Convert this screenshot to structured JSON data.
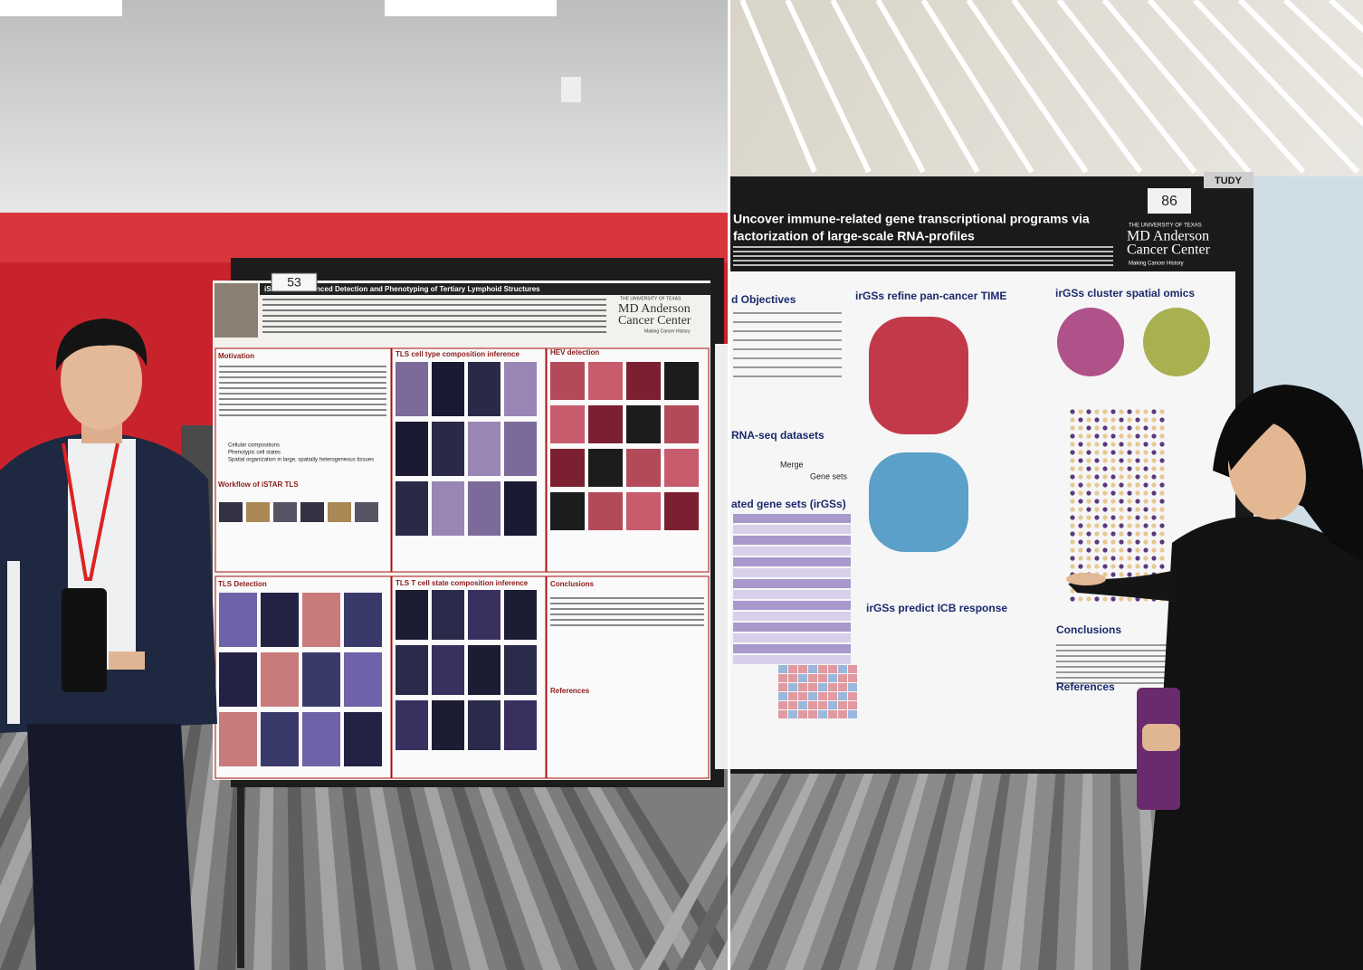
{
  "left_poster": {
    "number": "53",
    "title": "iStarTLS: Advanced Detection and Phenotyping of Tertiary Lymphoid Structures",
    "logo": {
      "university": "THE UNIVERSITY OF TEXAS",
      "name_top": "MD Anderson",
      "name_bottom": "Cancer Center",
      "tagline": "Making Cancer History"
    },
    "sections": [
      "Motivation",
      "TLS cell type composition inference",
      "HEV detection",
      "Workflow of iSTAR TLS",
      "TLS Detection",
      "TLS T cell state composition inference",
      "Conclusions",
      "References"
    ],
    "motivation_bullets": [
      "Cellular compositions",
      "Phenotypic cell states",
      "Spatial organization in large, spatially heterogeneous tissues"
    ]
  },
  "right_poster": {
    "number": "86",
    "tag": "TUDY",
    "title_lines": [
      "Uncover immune-related gene transcriptional programs via",
      "factorization of large-scale RNA-profiles"
    ],
    "logo": {
      "university": "THE UNIVERSITY OF TEXAS",
      "name_top": "MD Anderson",
      "name_bottom": "Cancer Center",
      "tagline": "Making Cancer History"
    },
    "sections": [
      "d Objectives",
      "irGSs refine pan-cancer TIME",
      "irGSs cluster spatial omics",
      "RNA-seq datasets",
      "ated gene sets (irGSs)",
      "irGSs predict ICB response",
      "Conclusions",
      "References"
    ],
    "merge_label": "Merge",
    "gene_sets_label": "Gene sets"
  }
}
